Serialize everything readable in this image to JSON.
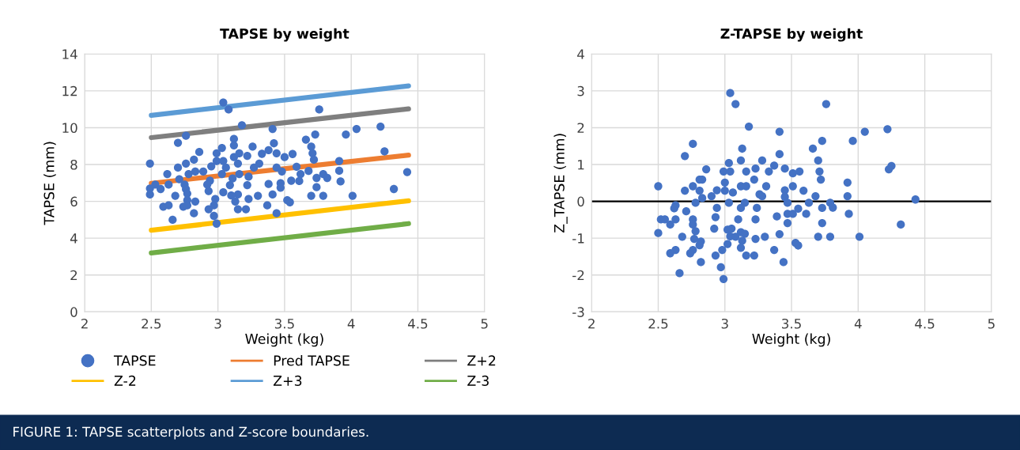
{
  "chart_data": [
    {
      "type": "scatter",
      "title": "TAPSE by weight",
      "xlabel": "Weight (kg)",
      "ylabel": "TAPSE (mm)",
      "xlim": [
        2,
        5
      ],
      "xticks": [
        2,
        2.5,
        3,
        3.5,
        4,
        4.5,
        5
      ],
      "ylim": [
        0,
        14
      ],
      "yticks": [
        0,
        2,
        4,
        6,
        8,
        10,
        12,
        14
      ],
      "grid": true,
      "legend": "bottom",
      "annotations": [
        "FIGURE 1: TAPSE scatterplots and Z-score boundaries."
      ],
      "series": [
        {
          "name": "TAPSE",
          "marker": "circle",
          "color": "#4472c4",
          "x": [
            3.04,
            3.08,
            3.76,
            3.18,
            3.41,
            4.04,
            4.22,
            3.96,
            3.73,
            3.66,
            2.76,
            2.7,
            3.12,
            3.12,
            3.42,
            3.03,
            3.26,
            3.7,
            2.99,
            2.86,
            3.16,
            3.33,
            3.38,
            3.22,
            3.56,
            3.71,
            4.25,
            3.5,
            3.44,
            3.72,
            3.12,
            3.91,
            2.49,
            2.76,
            2.82,
            3.04,
            3.15,
            3.31,
            2.7,
            2.95,
            2.99,
            3.59,
            3.27,
            3.44,
            2.83,
            2.89,
            3.06,
            3.48,
            3.68,
            3.91,
            4.42,
            2.62,
            2.78,
            3.03,
            3.16,
            3.62,
            3.79,
            2.71,
            3.23,
            3.82,
            2.94,
            3.11,
            3.55,
            3.61,
            3.74,
            3.92,
            3.47,
            3.38,
            2.53,
            2.63,
            2.75,
            2.92,
            3.22,
            2.49,
            2.57,
            2.76,
            3.09,
            3.47,
            3.74,
            2.93,
            3.04,
            2.49,
            2.77,
            3.15,
            2.68,
            3.1,
            3.3,
            3.41,
            3.7,
            3.79,
            4.01,
            4.32,
            2.98,
            3.23,
            2.77,
            3.13,
            2.83,
            3.52,
            3.54,
            2.59,
            2.63,
            2.74,
            2.77,
            2.97,
            3.37,
            2.93,
            3.15,
            3.21,
            2.82,
            3.44,
            2.97,
            2.66,
            2.99
          ],
          "values": [
            11.37,
            10.99,
            10.99,
            10.13,
            9.93,
            9.93,
            10.06,
            9.63,
            9.63,
            9.35,
            9.56,
            9.18,
            9.39,
            9.04,
            9.15,
            8.9,
            8.97,
            8.97,
            8.61,
            8.68,
            8.61,
            8.58,
            8.78,
            8.47,
            8.57,
            8.61,
            8.71,
            8.4,
            8.61,
            8.26,
            8.4,
            8.19,
            8.05,
            8.05,
            8.26,
            8.19,
            8.05,
            8.05,
            7.83,
            7.9,
            8.19,
            7.88,
            7.83,
            7.83,
            7.62,
            7.62,
            7.83,
            7.62,
            7.65,
            7.66,
            7.59,
            7.48,
            7.48,
            7.48,
            7.48,
            7.48,
            7.48,
            7.2,
            7.34,
            7.27,
            7.12,
            7.24,
            7.12,
            7.1,
            7.27,
            7.08,
            6.98,
            6.94,
            6.91,
            6.91,
            6.91,
            6.91,
            6.88,
            6.7,
            6.67,
            6.66,
            6.88,
            6.74,
            6.77,
            6.56,
            6.49,
            6.37,
            6.42,
            6.37,
            6.3,
            6.32,
            6.3,
            6.37,
            6.3,
            6.3,
            6.3,
            6.67,
            6.13,
            6.13,
            6.06,
            5.99,
            5.99,
            6.06,
            5.95,
            5.71,
            5.78,
            5.71,
            5.78,
            5.78,
            5.78,
            5.57,
            5.57,
            5.57,
            5.35,
            5.35,
            5.21,
            5.0,
            4.79
          ]
        },
        {
          "name": "Pred TAPSE",
          "type": "line",
          "color": "#ed7d31",
          "x": [
            2.5,
            4.43
          ],
          "values": [
            6.98,
            8.51
          ]
        },
        {
          "name": "Z+2",
          "type": "line",
          "color": "#7f7f7f",
          "x": [
            2.5,
            4.43
          ],
          "values": [
            9.46,
            11.02
          ]
        },
        {
          "name": "Z-2",
          "type": "line",
          "color": "#ffc000",
          "x": [
            2.5,
            4.43
          ],
          "values": [
            4.43,
            6.03
          ]
        },
        {
          "name": "Z+3",
          "type": "line",
          "color": "#5b9bd5",
          "x": [
            2.5,
            4.43
          ],
          "values": [
            10.67,
            12.27
          ]
        },
        {
          "name": "Z-3",
          "type": "line",
          "color": "#70ad47",
          "x": [
            2.5,
            4.43
          ],
          "values": [
            3.2,
            4.79
          ]
        }
      ]
    },
    {
      "type": "scatter",
      "title": "Z-TAPSE by weight",
      "xlabel": "Weight (kg)",
      "ylabel": "Z_TAPSE (mm)",
      "xlim": [
        2,
        5
      ],
      "xticks": [
        2,
        2.5,
        3,
        3.5,
        4,
        4.5,
        5
      ],
      "ylim": [
        -3,
        4
      ],
      "yticks": [
        -3,
        -2,
        -1,
        0,
        1,
        2,
        3,
        4
      ],
      "grid": true,
      "ref_lines": [
        {
          "axis": "y",
          "value": 0,
          "label": null,
          "color": "#000000"
        }
      ],
      "series": [
        {
          "marker": "circle",
          "color": "#4472c4",
          "x": [
            3.04,
            3.08,
            3.76,
            3.18,
            3.41,
            4.05,
            4.22,
            3.96,
            3.73,
            3.66,
            2.76,
            2.7,
            3.13,
            3.12,
            3.41,
            3.03,
            3.28,
            3.7,
            2.86,
            2.99,
            3.04,
            3.16,
            3.23,
            3.33,
            3.37,
            3.45,
            3.51,
            3.56,
            3.71,
            4.25,
            4.23,
            3.22,
            2.81,
            2.83,
            3.72,
            3.92,
            3.0,
            2.5,
            2.76,
            3.12,
            3.16,
            3.31,
            3.51,
            2.7,
            2.81,
            3.06,
            2.94,
            3.0,
            3.45,
            3.59,
            3.26,
            3.28,
            2.9,
            2.83,
            3.45,
            3.68,
            3.92,
            4.43,
            2.78,
            3.03,
            3.15,
            3.47,
            3.63,
            3.79,
            2.63,
            3.81,
            2.94,
            3.12,
            3.24,
            3.73,
            2.62,
            2.71,
            3.55,
            3.47,
            3.51,
            3.61,
            3.93,
            3.39,
            2.93,
            2.52,
            2.55,
            2.63,
            2.76,
            3.1,
            3.23,
            2.59,
            2.76,
            3.47,
            3.73,
            4.32,
            2.92,
            2.78,
            3.02,
            3.05,
            2.5,
            3.12,
            3.15,
            3.41,
            2.68,
            2.77,
            3.04,
            3.08,
            3.23,
            3.3,
            3.7,
            3.79,
            4.01,
            2.82,
            3.02,
            3.13,
            3.53,
            2.81,
            3.12,
            3.55,
            2.63,
            2.76,
            2.98,
            3.37,
            2.59,
            2.74,
            2.93,
            3.16,
            3.22,
            2.82,
            3.44,
            2.97,
            2.66,
            2.99
          ],
          "values": [
            2.94,
            2.64,
            2.64,
            2.03,
            1.89,
            1.89,
            1.96,
            1.64,
            1.64,
            1.43,
            1.56,
            1.23,
            1.43,
            1.11,
            1.28,
            1.04,
            1.11,
            1.11,
            0.87,
            0.81,
            0.81,
            0.81,
            0.89,
            0.81,
            0.97,
            0.89,
            0.76,
            0.81,
            0.81,
            0.96,
            0.87,
            0.59,
            0.59,
            0.59,
            0.59,
            0.51,
            0.51,
            0.41,
            0.41,
            0.41,
            0.41,
            0.41,
            0.41,
            0.29,
            0.29,
            0.24,
            0.3,
            0.29,
            0.3,
            0.29,
            0.19,
            0.14,
            0.14,
            0.09,
            0.12,
            0.14,
            0.14,
            0.05,
            -0.04,
            -0.04,
            -0.04,
            -0.04,
            -0.04,
            -0.04,
            -0.11,
            -0.17,
            -0.18,
            -0.18,
            -0.18,
            -0.18,
            -0.19,
            -0.27,
            -0.2,
            -0.34,
            -0.34,
            -0.34,
            -0.34,
            -0.41,
            -0.43,
            -0.49,
            -0.49,
            -0.49,
            -0.49,
            -0.49,
            -0.49,
            -0.63,
            -0.63,
            -0.59,
            -0.59,
            -0.63,
            -0.74,
            -0.81,
            -0.77,
            -0.74,
            -0.86,
            -0.84,
            -0.88,
            -0.89,
            -0.96,
            -1.02,
            -0.95,
            -0.96,
            -1.02,
            -0.96,
            -0.96,
            -0.96,
            -0.96,
            -1.09,
            -1.16,
            -1.07,
            -1.13,
            -1.19,
            -1.26,
            -1.2,
            -1.32,
            -1.32,
            -1.32,
            -1.32,
            -1.41,
            -1.41,
            -1.47,
            -1.47,
            -1.47,
            -1.65,
            -1.65,
            -1.79,
            -1.95,
            -2.11
          ]
        }
      ]
    }
  ]
}
